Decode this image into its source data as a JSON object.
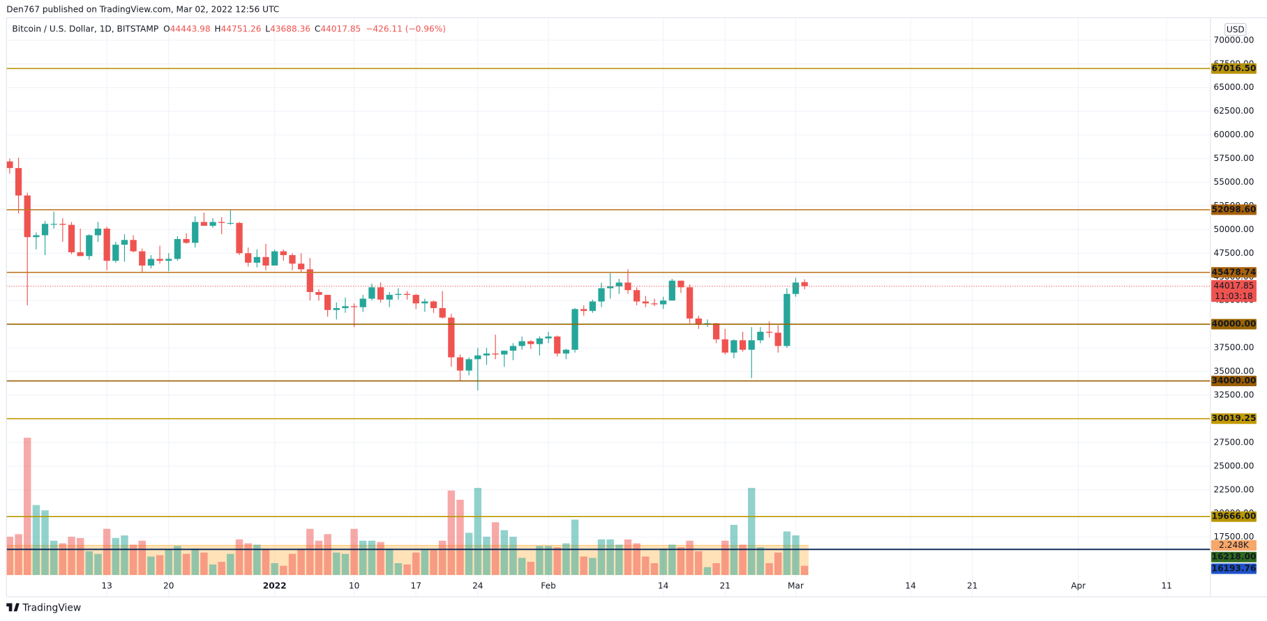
{
  "header": {
    "publisher": "Den767 published on TradingView.com, Mar 02, 2022 12:56 UTC",
    "symbol": "Bitcoin / U.S. Dollar, 1D, BITSTAMP",
    "o": "O",
    "h": "H",
    "l": "L",
    "c": "C",
    "change": "−426.11 (−0.96%)",
    "currency": "USD",
    "countdown": "11:03:18"
  },
  "footer": {
    "brand": "TradingView"
  },
  "chart_data": {
    "type": "candlestick",
    "categories": [
      null,
      null,
      null,
      null,
      null,
      null,
      null,
      null,
      null,
      null,
      null,
      "13",
      null,
      null,
      null,
      null,
      null,
      null,
      "20",
      null,
      null,
      null,
      null,
      null,
      null,
      null,
      null,
      null,
      null,
      null,
      "2022",
      null,
      null,
      null,
      null,
      null,
      null,
      null,
      null,
      "10",
      null,
      null,
      null,
      null,
      null,
      null,
      "17",
      null,
      null,
      null,
      null,
      null,
      null,
      "24",
      null,
      null,
      null,
      null,
      null,
      null,
      null,
      "Feb",
      null,
      null,
      null,
      null,
      null,
      null,
      null,
      null,
      null,
      null,
      null,
      null,
      "14",
      null,
      null,
      null,
      null,
      null,
      null,
      "21",
      null,
      null,
      null,
      null,
      null,
      null,
      null,
      "Mar",
      null,
      null,
      null,
      null,
      null,
      null,
      null,
      null,
      null,
      null,
      null,
      null,
      "14",
      null,
      null,
      null,
      null,
      null,
      null,
      "21",
      null,
      null,
      null,
      null,
      null,
      null,
      null,
      null,
      null,
      null,
      null,
      "Apr",
      null,
      null,
      null,
      null,
      null,
      null,
      null,
      null,
      null,
      "11",
      null,
      null,
      null,
      null
    ],
    "open": [
      57200,
      56500,
      53600,
      49200,
      49400,
      50600,
      50600,
      50500,
      47600,
      47200,
      49400,
      50100,
      46700,
      48400,
      48900,
      47700,
      46200,
      46900,
      46700,
      46900,
      49000,
      48600,
      50800,
      50400,
      50800,
      50700,
      50700,
      47500,
      46500,
      47100,
      46200,
      47700,
      47300,
      46400,
      45800,
      43400,
      43100,
      41500,
      41700,
      41900,
      41800,
      42700,
      43900,
      42600,
      43100,
      43200,
      43100,
      42200,
      42400,
      41700,
      40700,
      36500,
      35100,
      36300,
      36700,
      36900,
      36800,
      37200,
      37700,
      38200,
      37900,
      38500,
      38700,
      36900,
      37300,
      41600,
      41400,
      42400,
      43800,
      44000,
      44400,
      43600,
      42400,
      42200,
      42100,
      42500,
      44600,
      43900,
      40600,
      40000,
      40100,
      38400,
      37000,
      38300,
      37300,
      38300,
      39200,
      39100,
      37700,
      43200,
      44443.98,
      null,
      null,
      null,
      null,
      null,
      null,
      null,
      null,
      null,
      null,
      null,
      null,
      null,
      null,
      null,
      null,
      null,
      null,
      null,
      null,
      null,
      null,
      null,
      null,
      null,
      null,
      null,
      null,
      null,
      null,
      null,
      null,
      null,
      null,
      null,
      null,
      null,
      null,
      null,
      null,
      null,
      null,
      null,
      null,
      null
    ],
    "high": [
      57500,
      57600,
      53900,
      49700,
      50900,
      51900,
      51200,
      50800,
      50100,
      49500,
      50800,
      50300,
      48700,
      49500,
      49400,
      48000,
      47300,
      48300,
      47500,
      49300,
      49600,
      51400,
      51800,
      51200,
      51300,
      52100,
      50800,
      48100,
      47900,
      48500,
      47900,
      47900,
      47500,
      47500,
      47000,
      43700,
      43100,
      42300,
      42800,
      42200,
      43100,
      44300,
      44400,
      43400,
      43800,
      43500,
      43200,
      42700,
      42500,
      43500,
      41100,
      36800,
      36500,
      37500,
      37500,
      38900,
      37200,
      38000,
      38700,
      38300,
      38700,
      39200,
      38800,
      37400,
      41700,
      42000,
      42600,
      44400,
      45400,
      44800,
      45800,
      43900,
      43000,
      42700,
      42900,
      44800,
      44600,
      44200,
      40900,
      40500,
      40100,
      39500,
      38400,
      39200,
      39700,
      39700,
      40300,
      39900,
      43800,
      44900,
      44751.26,
      null,
      null,
      null,
      null,
      null,
      null,
      null,
      null,
      null,
      null,
      null,
      null,
      null,
      null,
      null,
      null,
      null,
      null,
      null,
      null,
      null,
      null,
      null,
      null,
      null,
      null,
      null,
      null,
      null,
      null,
      null,
      null,
      null,
      null,
      null,
      null,
      null,
      null,
      null,
      null,
      null,
      null,
      null,
      null,
      null
    ],
    "low": [
      55900,
      51700,
      42000,
      47900,
      47300,
      50100,
      48700,
      47400,
      47200,
      46800,
      48700,
      45700,
      46500,
      46600,
      47600,
      45500,
      45900,
      46400,
      45600,
      46700,
      48500,
      48100,
      50400,
      50200,
      49500,
      50500,
      47300,
      46100,
      46000,
      45700,
      46200,
      46700,
      45700,
      45500,
      42500,
      42500,
      40800,
      40500,
      41200,
      39700,
      41300,
      42500,
      42300,
      41800,
      42600,
      42600,
      41600,
      41300,
      41200,
      40600,
      35500,
      34000,
      34600,
      33000,
      35700,
      36300,
      35500,
      36200,
      37300,
      37400,
      36700,
      38000,
      36600,
      36300,
      37000,
      40900,
      41200,
      41800,
      42700,
      43200,
      43200,
      42000,
      41800,
      41900,
      41600,
      42500,
      43300,
      40100,
      39500,
      39700,
      38000,
      36800,
      36400,
      37100,
      34300,
      38000,
      38600,
      37000,
      37500,
      42900,
      43688.36,
      null,
      null,
      null,
      null,
      null,
      null,
      null,
      null,
      null,
      null,
      null,
      null,
      null,
      null,
      null,
      null,
      null,
      null,
      null,
      null,
      null,
      null,
      null,
      null,
      null,
      null,
      null,
      null,
      null,
      null,
      null,
      null,
      null,
      null,
      null,
      null,
      null,
      null,
      null,
      null,
      null,
      null,
      null,
      null,
      null
    ],
    "close": [
      56500,
      53600,
      49200,
      49400,
      50600,
      50600,
      50500,
      47600,
      47200,
      49400,
      50100,
      46700,
      48400,
      48900,
      47700,
      46200,
      46900,
      46700,
      46900,
      49000,
      48600,
      50800,
      50400,
      50800,
      50700,
      50700,
      47500,
      46500,
      47100,
      46200,
      47700,
      47300,
      46400,
      45800,
      43400,
      43100,
      41500,
      41700,
      41900,
      41800,
      42700,
      43900,
      42600,
      43100,
      43200,
      43100,
      42200,
      42400,
      41700,
      40700,
      36500,
      35100,
      36300,
      36700,
      36900,
      36800,
      37200,
      37700,
      38200,
      37900,
      38500,
      38700,
      36900,
      37300,
      41600,
      41400,
      42400,
      43800,
      44000,
      44400,
      43600,
      42400,
      42200,
      42100,
      42500,
      44600,
      43900,
      40600,
      40000,
      40100,
      38400,
      37000,
      38300,
      37300,
      38300,
      39200,
      39100,
      37700,
      43200,
      44400,
      44017.85,
      null,
      null,
      null,
      null,
      null,
      null,
      null,
      null,
      null,
      null,
      null,
      null,
      null,
      null,
      null,
      null,
      null,
      null,
      null,
      null,
      null,
      null,
      null,
      null,
      null,
      null,
      null,
      null,
      null,
      null,
      null,
      null,
      null,
      null,
      null,
      null,
      null,
      null,
      null,
      null,
      null,
      null,
      null,
      null,
      null
    ],
    "volume": [
      2.9,
      3.1,
      10.4,
      5.3,
      4.9,
      2.6,
      2.4,
      2.9,
      2.8,
      1.8,
      1.6,
      3.5,
      2.8,
      3.0,
      2.3,
      2.6,
      1.4,
      1.5,
      1.9,
      2.2,
      1.6,
      2.0,
      1.7,
      0.8,
      1.0,
      1.6,
      2.7,
      2.4,
      2.3,
      2.0,
      0.9,
      0.7,
      1.6,
      2.0,
      3.5,
      2.6,
      3.1,
      1.7,
      1.6,
      3.5,
      2.6,
      2.6,
      2.5,
      2.0,
      0.9,
      0.8,
      1.7,
      1.9,
      1.9,
      2.6,
      6.4,
      5.7,
      3.2,
      6.6,
      2.9,
      4.0,
      3.4,
      2.9,
      1.3,
      1.0,
      2.2,
      2.2,
      2.1,
      2.4,
      4.2,
      1.4,
      1.3,
      2.7,
      2.7,
      2.3,
      2.7,
      2.4,
      1.4,
      0.9,
      2.0,
      2.3,
      2.1,
      2.6,
      1.8,
      0.6,
      0.9,
      2.6,
      3.8,
      2.3,
      6.6,
      2.1,
      0.9,
      1.7,
      3.3,
      3.0,
      0.7,
      null,
      null,
      null,
      null,
      null,
      null,
      null,
      null,
      null,
      null,
      null,
      null,
      null,
      null,
      null,
      null,
      null,
      null,
      null,
      null,
      null,
      null,
      null,
      null,
      null,
      null,
      null,
      null,
      null,
      null,
      null,
      null,
      null,
      null,
      null,
      null,
      null,
      null,
      null,
      null,
      null,
      null,
      null,
      null,
      null
    ],
    "volume_ma": {
      "value": 2.248,
      "label": "2.248K"
    },
    "vlim": [
      0,
      11.3
    ],
    "up_color": "#26a69a",
    "down_color": "#ef5350",
    "ylim": [
      16000,
      72000
    ],
    "yticks": [
      {
        "value": 17500,
        "label": "17500.00"
      },
      {
        "value": 20000,
        "label": "20000.00"
      },
      {
        "value": 22500,
        "label": "22500.00"
      },
      {
        "value": 25000,
        "label": "25000.00"
      },
      {
        "value": 27500,
        "label": "27500.00"
      },
      {
        "value": 30000,
        "label": "30000.00"
      },
      {
        "value": 32500,
        "label": "32500.00"
      },
      {
        "value": 35000,
        "label": "35000.00"
      },
      {
        "value": 37500,
        "label": "37500.00"
      },
      {
        "value": 40000,
        "label": "40000.00"
      },
      {
        "value": 42500,
        "label": "42500.00"
      },
      {
        "value": 45000,
        "label": "45000.00"
      },
      {
        "value": 47500,
        "label": "47500.00"
      },
      {
        "value": 50000,
        "label": "50000.00"
      },
      {
        "value": 52500,
        "label": "52500.00"
      },
      {
        "value": 55000,
        "label": "55000.00"
      },
      {
        "value": 57500,
        "label": "57500.00"
      },
      {
        "value": 60000,
        "label": "60000.00"
      },
      {
        "value": 62500,
        "label": "62500.00"
      },
      {
        "value": 65000,
        "label": "65000.00"
      },
      {
        "value": 67500,
        "label": "67500.00"
      },
      {
        "value": 70000,
        "label": "70000.00"
      }
    ],
    "grid": true,
    "levels": [
      {
        "value": 67016.5,
        "label": "67016.50",
        "color": "#b8930a",
        "label_color": "#b8930a"
      },
      {
        "value": 52098.6,
        "label": "52098.60",
        "color": "#c07a2a",
        "label_color": "#a8620a"
      },
      {
        "value": 45478.74,
        "label": "45478.74",
        "color": "#c07a2a",
        "label_color": "#a8620a"
      },
      {
        "value": 40000,
        "label": "40000.00",
        "color": "#9a6400",
        "label_color": "#9a6400"
      },
      {
        "value": 34000,
        "label": "34000.00",
        "color": "#9a5c00",
        "label_color": "#9a5c00"
      },
      {
        "value": 30019.25,
        "label": "30019.25",
        "color": "#c29a00",
        "label_color": "#c29a00"
      },
      {
        "value": 19666,
        "label": "19666.00",
        "color": "#b89600",
        "label_color": "#b89600"
      },
      {
        "value": 16218,
        "label": "16218.00",
        "color": "#1f3f6b",
        "label_color": "#2f6a1f"
      },
      {
        "value": 16193.76,
        "label": "16193.76",
        "color": "#0d2a5c",
        "label_color": "#1e52c8"
      }
    ]
  }
}
